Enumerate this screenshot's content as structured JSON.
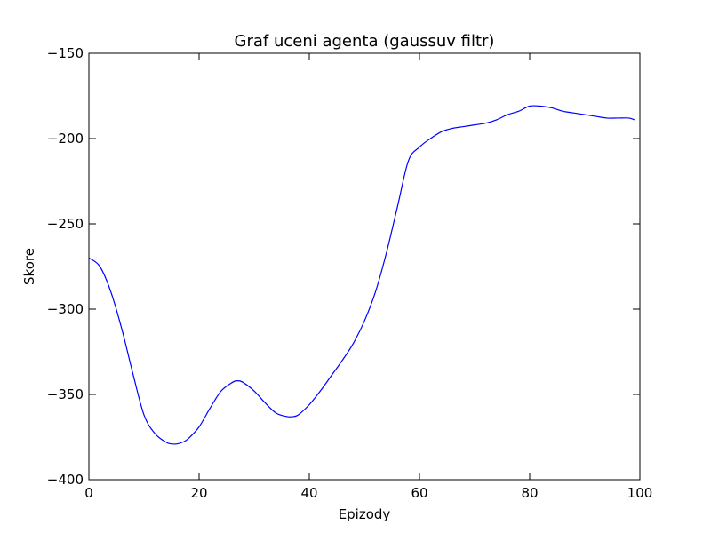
{
  "chart_data": {
    "type": "line",
    "title": "Graf uceni agenta (gaussuv filtr)",
    "xlabel": "Epizody",
    "ylabel": "Skore",
    "xlim": [
      0,
      100
    ],
    "ylim": [
      -400,
      -150
    ],
    "x_ticks": [
      0,
      20,
      40,
      60,
      80,
      100
    ],
    "y_ticks": [
      -150,
      -200,
      -250,
      -300,
      -350,
      -400
    ],
    "x_tick_labels": [
      "0",
      "20",
      "40",
      "60",
      "80",
      "100"
    ],
    "y_tick_labels": [
      "−150",
      "−200",
      "−250",
      "−300",
      "−350",
      "−400"
    ],
    "grid": false,
    "series": [
      {
        "color": "#0000ff",
        "x": [
          0,
          2,
          4,
          6,
          8,
          10,
          12,
          14,
          15,
          16,
          17,
          18,
          20,
          22,
          24,
          26,
          27,
          28,
          30,
          32,
          34,
          36,
          37,
          38,
          40,
          42,
          44,
          46,
          48,
          50,
          52,
          54,
          56,
          58,
          60,
          62,
          64,
          66,
          68,
          70,
          72,
          74,
          76,
          78,
          80,
          82,
          84,
          86,
          88,
          90,
          92,
          94,
          96,
          98,
          99
        ],
        "y": [
          -270,
          -275,
          -290,
          -312,
          -338,
          -362,
          -373,
          -378,
          -379,
          -379,
          -378,
          -376,
          -369,
          -358,
          -348,
          -343,
          -342,
          -343,
          -348,
          -355,
          -361,
          -363,
          -363,
          -362,
          -356,
          -348,
          -339,
          -330,
          -320,
          -307,
          -290,
          -267,
          -240,
          -213,
          -205,
          -200,
          -196,
          -194,
          -193,
          -192,
          -191,
          -189,
          -186,
          -184,
          -181,
          -181,
          -182,
          -184,
          -185,
          -186,
          -187,
          -188,
          -188,
          -188,
          -189
        ]
      }
    ]
  }
}
